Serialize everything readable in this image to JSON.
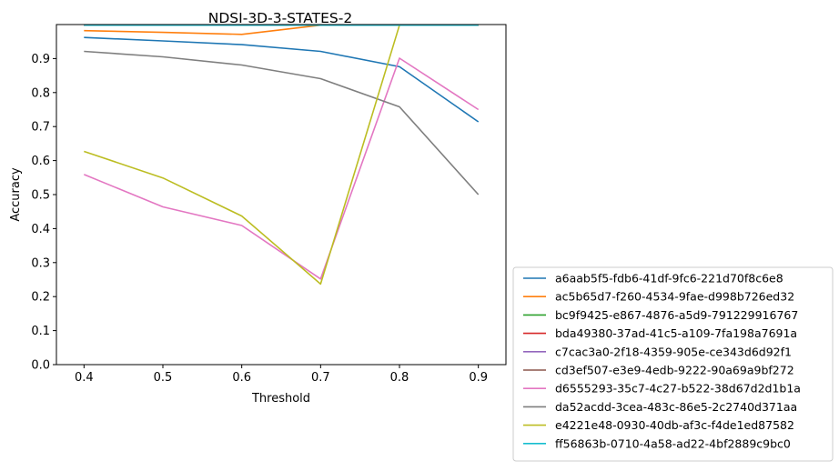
{
  "chart_data": {
    "type": "line",
    "title": "NDSI-3D-3-STATES-2",
    "xlabel": "Threshold",
    "ylabel": "Accuracy",
    "x": [
      0.4,
      0.5,
      0.6,
      0.7,
      0.8,
      0.9
    ],
    "x_ticks": [
      "0.4",
      "0.5",
      "0.6",
      "0.7",
      "0.8",
      "0.9"
    ],
    "y_ticks": [
      "0.0",
      "0.1",
      "0.2",
      "0.3",
      "0.4",
      "0.5",
      "0.6",
      "0.7",
      "0.8",
      "0.9"
    ],
    "xlim": [
      0.365,
      0.935
    ],
    "ylim": [
      0.0,
      1.0
    ],
    "grid": false,
    "legend_position": "outside-lower-right",
    "series": [
      {
        "name": "a6aab5f5-fdb6-41df-9fc6-221d70f8c6e8",
        "color": "#1f77b4",
        "values": [
          0.962,
          0.952,
          0.941,
          0.921,
          0.876,
          0.714
        ]
      },
      {
        "name": "ac5b65d7-f260-4534-9fae-d998b726ed32",
        "color": "#ff7f0e",
        "values": [
          0.982,
          0.977,
          0.971,
          0.998,
          0.998,
          0.998
        ]
      },
      {
        "name": "bc9f9425-e867-4876-a5d9-791229916767",
        "color": "#2ca02c",
        "values": [
          0.998,
          0.998,
          0.998,
          0.998,
          0.998,
          0.998
        ]
      },
      {
        "name": "bda49380-37ad-41c5-a109-7fa198a7691a",
        "color": "#d62728",
        "values": [
          0.998,
          0.998,
          0.998,
          0.998,
          0.998,
          0.998
        ]
      },
      {
        "name": "c7cac3a0-2f18-4359-905e-ce343d6d92f1",
        "color": "#9467bd",
        "values": [
          0.998,
          0.998,
          0.998,
          0.998,
          0.998,
          0.998
        ]
      },
      {
        "name": "cd3ef507-e3e9-4edb-9222-90a69a9bf272",
        "color": "#8c564b",
        "values": [
          0.998,
          0.998,
          0.998,
          0.998,
          0.998,
          0.998
        ]
      },
      {
        "name": "d6555293-35c7-4c27-b522-38d67d2d1b1a",
        "color": "#e377c2",
        "values": [
          0.559,
          0.464,
          0.409,
          0.252,
          0.901,
          0.75
        ]
      },
      {
        "name": "da52acdd-3cea-483c-86e5-2c2740d371aa",
        "color": "#7f7f7f",
        "values": [
          0.921,
          0.905,
          0.881,
          0.841,
          0.758,
          0.5
        ]
      },
      {
        "name": "e4221e48-0930-40db-af3c-f4de1ed87582",
        "color": "#bcbd22",
        "values": [
          0.627,
          0.549,
          0.437,
          0.237,
          0.998,
          0.998
        ]
      },
      {
        "name": "ff56863b-0710-4a58-ad22-4bf2889c9bc0",
        "color": "#17becf",
        "values": [
          0.998,
          0.998,
          0.998,
          0.998,
          0.998,
          0.998
        ]
      }
    ]
  }
}
